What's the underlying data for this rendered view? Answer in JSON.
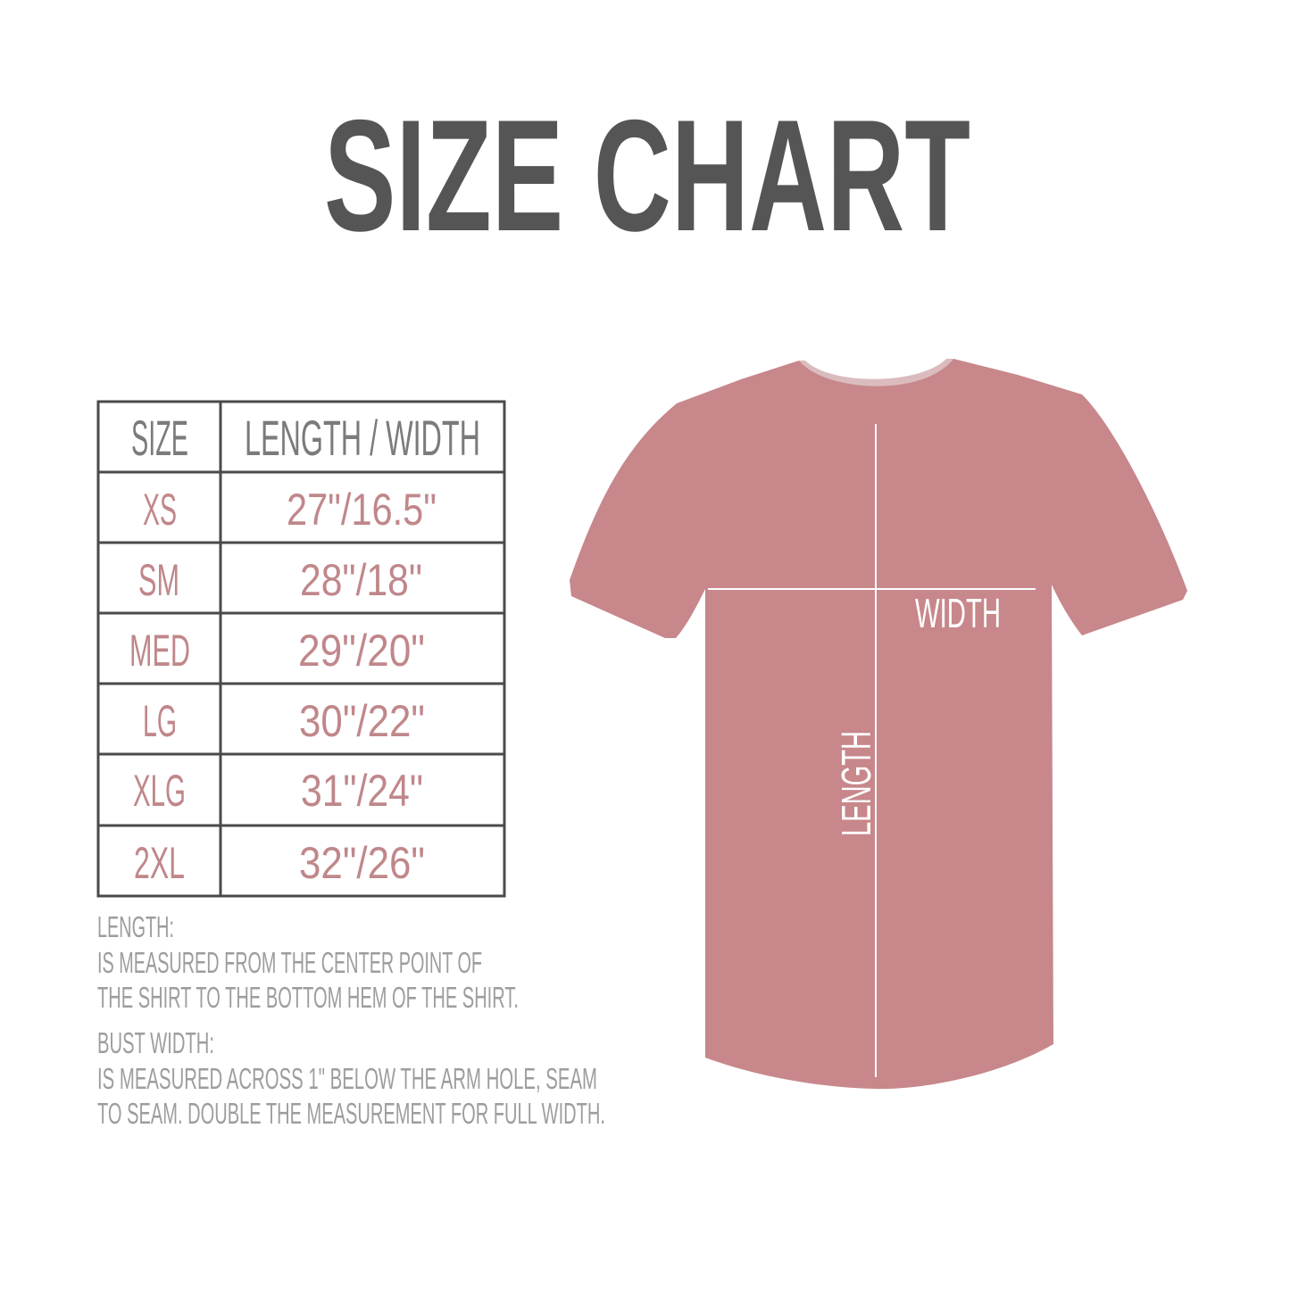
{
  "title": "SIZE CHART",
  "colors": {
    "title": "#555555",
    "header_text": "#7b7b7b",
    "value_text": "#c0878a",
    "note_text": "#9d9d9d",
    "shirt": "#c7878b",
    "table_border": "#4a4a4a"
  },
  "table": {
    "headers": [
      "SIZE",
      "LENGTH / WIDTH"
    ],
    "rows": [
      {
        "size": "XS",
        "measure": "27\"/16.5\""
      },
      {
        "size": "SM",
        "measure": "28\"/18\""
      },
      {
        "size": "MED",
        "measure": "29\"/20\""
      },
      {
        "size": "LG",
        "measure": "30\"/22\""
      },
      {
        "size": "XLG",
        "measure": "31\"/24\""
      },
      {
        "size": "2XL",
        "measure": "32\"/26\""
      }
    ]
  },
  "notes": [
    "LENGTH:",
    "IS MEASURED FROM THE CENTER POINT OF",
    "THE SHIRT TO THE BOTTOM HEM OF THE SHIRT.",
    "BUST WIDTH:",
    "IS MEASURED ACROSS  1\" BELOW THE ARM HOLE, SEAM",
    "TO SEAM. DOUBLE THE MEASUREMENT FOR FULL WIDTH."
  ],
  "shirt": {
    "width_label": "WIDTH",
    "length_label": "LENGTH"
  }
}
